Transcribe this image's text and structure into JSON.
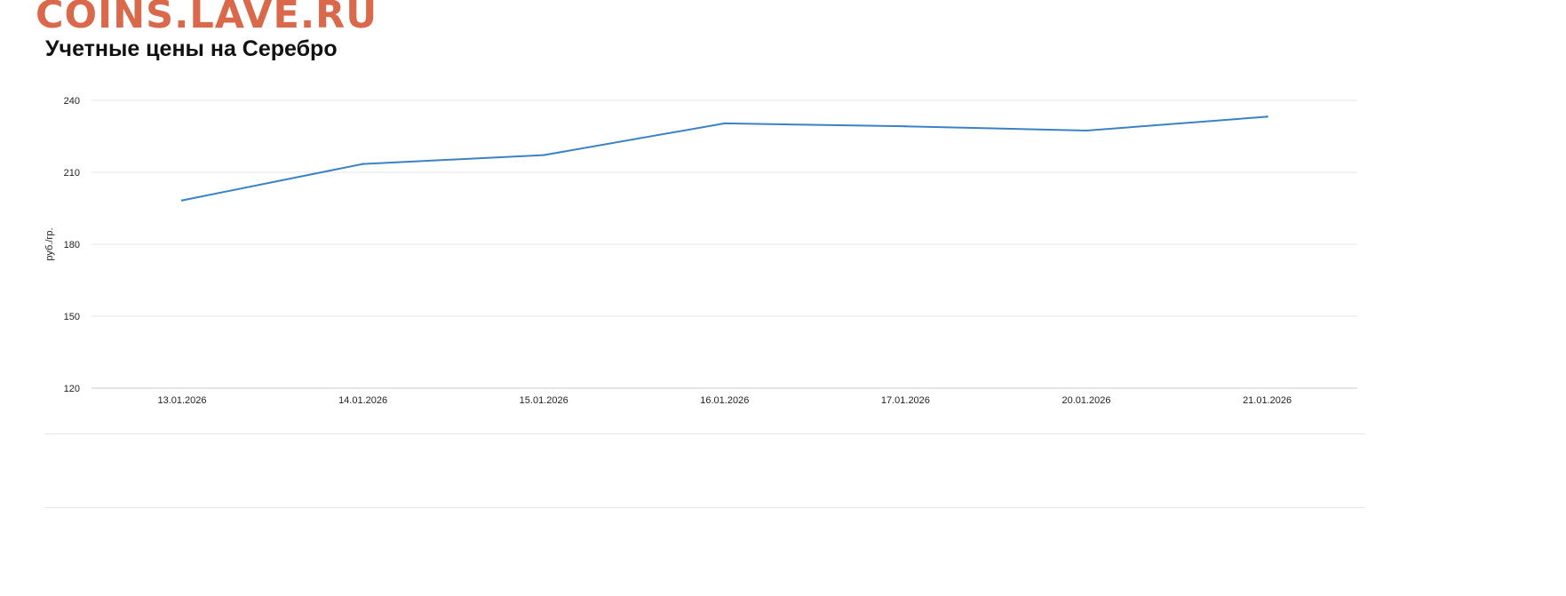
{
  "watermark": "COINS.LAVE.RU",
  "title": "Учетные цены на Серебро",
  "colors": {
    "watermark": "#d9694a",
    "line": "#3a82c4",
    "grid": "#e5e5e5",
    "axis": "#c8c8c8"
  },
  "chart_data": {
    "type": "line",
    "title": "Учетные цены на Серебро",
    "xlabel": "",
    "ylabel": "руб./гр.",
    "categories": [
      "13.01.2026",
      "14.01.2026",
      "15.01.2026",
      "16.01.2026",
      "17.01.2026",
      "20.01.2026",
      "21.01.2026"
    ],
    "series": [
      {
        "values": [
          198.3,
          213.5,
          217.2,
          230.4,
          229.2,
          227.4,
          233.2
        ]
      }
    ],
    "ylim": [
      120,
      240
    ],
    "yticks": [
      120,
      150,
      180,
      210,
      240
    ],
    "grid": true,
    "legend": "none"
  }
}
